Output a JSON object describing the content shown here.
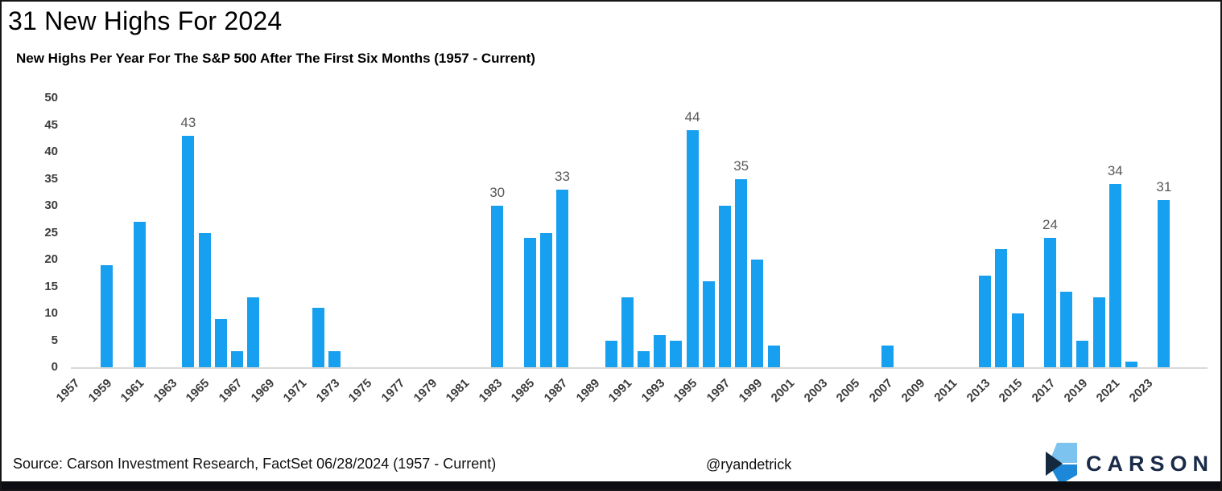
{
  "header": {
    "title": "31 New Highs For 2024",
    "subtitle": "New Highs Per Year For The S&P 500 After The First Six Months (1957 - Current)"
  },
  "chart_data": {
    "type": "bar",
    "title": "New Highs Per Year For The S&P 500 After The First Six Months (1957 - Current)",
    "xlabel": "",
    "ylabel": "",
    "ylim": [
      0,
      50
    ],
    "yticks": [
      0,
      5,
      10,
      15,
      20,
      25,
      30,
      35,
      40,
      45,
      50
    ],
    "grid": false,
    "legend": "none",
    "bar_color": "#18A0F0",
    "value_label_color": "#595959",
    "axis_label_color": "#3D3D3D",
    "years": [
      1957,
      1958,
      1959,
      1960,
      1961,
      1962,
      1963,
      1964,
      1965,
      1966,
      1967,
      1968,
      1969,
      1970,
      1971,
      1972,
      1973,
      1974,
      1975,
      1976,
      1977,
      1978,
      1979,
      1980,
      1981,
      1982,
      1983,
      1984,
      1985,
      1986,
      1987,
      1988,
      1989,
      1990,
      1991,
      1992,
      1993,
      1994,
      1995,
      1996,
      1997,
      1998,
      1999,
      2000,
      2001,
      2002,
      2003,
      2004,
      2005,
      2006,
      2007,
      2008,
      2009,
      2010,
      2011,
      2012,
      2013,
      2014,
      2015,
      2016,
      2017,
      2018,
      2019,
      2020,
      2021,
      2022,
      2023,
      2024
    ],
    "values": [
      0,
      0,
      19,
      0,
      27,
      0,
      0,
      43,
      25,
      9,
      3,
      13,
      0,
      0,
      0,
      11,
      3,
      0,
      0,
      0,
      0,
      0,
      0,
      0,
      0,
      0,
      30,
      0,
      24,
      25,
      33,
      0,
      0,
      5,
      13,
      3,
      6,
      5,
      44,
      16,
      30,
      35,
      20,
      4,
      0,
      0,
      0,
      0,
      0,
      0,
      4,
      0,
      0,
      0,
      0,
      0,
      17,
      22,
      10,
      0,
      24,
      14,
      5,
      13,
      34,
      1,
      0,
      31
    ],
    "labeled_years": [
      1964,
      1983,
      1987,
      1995,
      1998,
      2017,
      2021,
      2024
    ],
    "xtick_labels": [
      "1957",
      "1959",
      "1961",
      "1963",
      "1965",
      "1967",
      "1969",
      "1971",
      "1973",
      "1975",
      "1977",
      "1979",
      "1981",
      "1983",
      "1985",
      "1987",
      "1989",
      "1991",
      "1993",
      "1995",
      "1997",
      "1999",
      "2001",
      "2003",
      "2005",
      "2007",
      "2009",
      "2011",
      "2013",
      "2015",
      "2017",
      "2019",
      "2021",
      "2023"
    ]
  },
  "footer": {
    "source": "Source: Carson Investment Research, FactSet 06/28/2024 (1957 - Current)",
    "handle": "@ryandetrick",
    "brand": "CARSON",
    "brand_colors": {
      "light_blue": "#7CC3EF",
      "blue": "#1E88D8",
      "navy": "#14293D",
      "text": "#1A2B49"
    },
    "accent_bar_color": "#0B0D12"
  }
}
